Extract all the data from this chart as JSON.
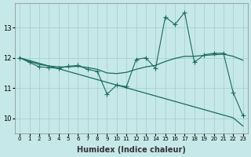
{
  "xlabel": "Humidex (Indice chaleur)",
  "background_color": "#c6e8e8",
  "grid_color": "#9fcece",
  "line_color": "#1a6b5a",
  "x_data": [
    0,
    1,
    2,
    3,
    4,
    5,
    6,
    7,
    8,
    9,
    10,
    11,
    12,
    13,
    14,
    15,
    16,
    17,
    18,
    19,
    20,
    21,
    22,
    23
  ],
  "y_zigzag": [
    12.0,
    11.85,
    11.7,
    11.68,
    11.65,
    11.72,
    11.75,
    11.62,
    11.55,
    10.8,
    11.1,
    11.05,
    11.95,
    12.0,
    11.65,
    13.35,
    13.1,
    13.5,
    11.85,
    12.1,
    12.15,
    12.15,
    10.85,
    10.1
  ],
  "y_smooth": [
    12.0,
    11.88,
    11.78,
    11.73,
    11.7,
    11.7,
    11.72,
    11.68,
    11.62,
    11.5,
    11.48,
    11.52,
    11.62,
    11.7,
    11.75,
    11.88,
    11.98,
    12.05,
    12.05,
    12.08,
    12.1,
    12.12,
    12.05,
    11.92
  ],
  "y_trend": [
    12.0,
    11.91,
    11.82,
    11.73,
    11.64,
    11.55,
    11.46,
    11.37,
    11.28,
    11.19,
    11.1,
    11.01,
    10.92,
    10.83,
    10.74,
    10.65,
    10.56,
    10.47,
    10.38,
    10.29,
    10.2,
    10.11,
    10.02,
    9.75
  ],
  "ylim": [
    9.5,
    13.8
  ],
  "xlim": [
    -0.5,
    23.5
  ],
  "yticks": [
    10,
    11,
    12,
    13
  ],
  "figsize": [
    3.2,
    2.0
  ],
  "dpi": 100
}
